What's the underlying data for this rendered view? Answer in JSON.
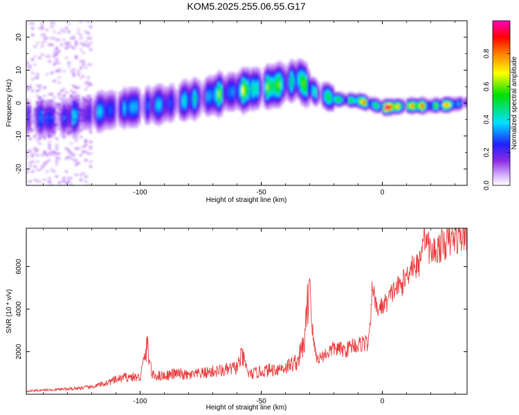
{
  "title": "KOM5.2025.255.06.55.G17",
  "colors": {
    "snr_line": "#e83c3c",
    "frame": "#000000",
    "background": "#ffffff"
  },
  "chart_data": [
    {
      "type": "heatmap",
      "xlabel": "Height of straight line (km)",
      "ylabel": "Frequency (Hz)",
      "xlim": [
        -147,
        35
      ],
      "ylim": [
        -25,
        25
      ],
      "x_ticks": [
        -100,
        -50,
        0
      ],
      "y_ticks": [
        -20,
        -10,
        0,
        10,
        20
      ],
      "colorbar": {
        "label": "Normalized spectral amplitude",
        "range": [
          0,
          1
        ],
        "ticks": [
          "0.0",
          "0.2",
          "0.4",
          "0.6",
          "0.8"
        ],
        "colormap": "rainbow (white/lavender low, purple, blue, cyan, green, yellow, orange, red, magenta high)"
      },
      "ridge": {
        "x": [
          -147,
          -135,
          -120,
          -105,
          -90,
          -75,
          -65,
          -55,
          -45,
          -35,
          -28,
          -20,
          -10,
          0,
          10,
          20,
          30,
          33
        ],
        "center_hz": [
          -4.5,
          -5,
          -3,
          -1.5,
          -0.5,
          1.5,
          3,
          4,
          5,
          7,
          3,
          1,
          0.5,
          -1.5,
          -1,
          -1,
          -0.5,
          0
        ],
        "peak_amplitude": [
          0.3,
          0.3,
          0.35,
          0.4,
          0.35,
          0.45,
          0.55,
          0.6,
          0.65,
          0.6,
          0.55,
          0.6,
          0.7,
          0.95,
          0.9,
          0.85,
          0.6,
          0.4
        ]
      }
    },
    {
      "type": "line",
      "xlabel": "Height of straight line (km)",
      "ylabel": "SNR (10 * v/v)",
      "xlim": [
        -147,
        35
      ],
      "ylim": [
        0,
        7800
      ],
      "x_ticks": [
        -100,
        -50,
        0
      ],
      "y_ticks": [
        2000,
        4000,
        6000
      ],
      "series": [
        {
          "x": [
            -147,
            -140,
            -130,
            -120,
            -115,
            -110,
            -105,
            -100,
            -97,
            -95,
            -90,
            -85,
            -80,
            -75,
            -70,
            -65,
            -60,
            -58,
            -55,
            -50,
            -45,
            -40,
            -35,
            -32,
            -30,
            -29,
            -28,
            -27,
            -25,
            -20,
            -15,
            -12,
            -10,
            -8,
            -6,
            -5,
            -4,
            -3,
            -2,
            0,
            2,
            5,
            8,
            10,
            12,
            15,
            17,
            20,
            25,
            30,
            35
          ],
          "y": [
            150,
            200,
            250,
            350,
            500,
            700,
            850,
            800,
            2350,
            900,
            900,
            1000,
            900,
            1000,
            1100,
            1150,
            1300,
            1850,
            950,
            1100,
            1200,
            1300,
            1600,
            2600,
            5700,
            3200,
            2200,
            1700,
            1800,
            2200,
            2100,
            2400,
            2300,
            2500,
            2400,
            3000,
            5500,
            4300,
            4000,
            4200,
            4400,
            5000,
            5200,
            5600,
            6200,
            6000,
            7800,
            6700,
            7100,
            7400,
            7600
          ]
        }
      ]
    }
  ]
}
